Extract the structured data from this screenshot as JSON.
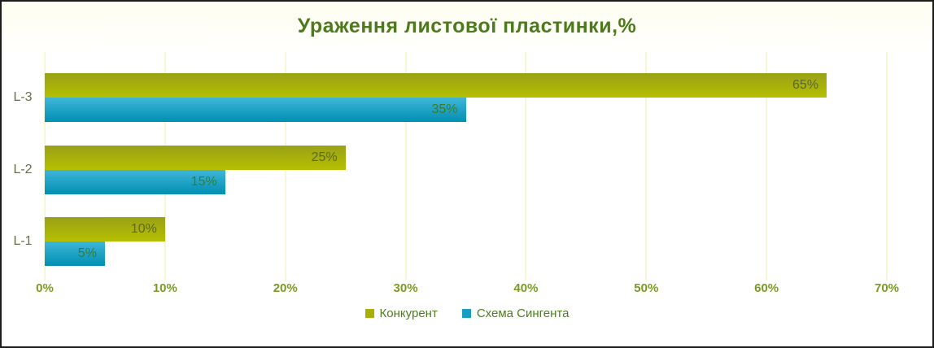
{
  "chart_data": {
    "type": "bar",
    "orientation": "horizontal",
    "title": "Ураження листової пластинки,%",
    "categories": [
      "L-3",
      "L-2",
      "L-1"
    ],
    "series": [
      {
        "name": "Конкурент",
        "values": [
          65,
          25,
          10
        ],
        "color": "#a7b105",
        "gradient_top": "#99a116",
        "gradient_bottom": "#b5bf01",
        "label_color": "#5e662e"
      },
      {
        "name": "Схема Сингента",
        "values": [
          35,
          15,
          5
        ],
        "color": "#1a9dc2",
        "gradient_top": "#3fb6d9",
        "gradient_bottom": "#008fb2",
        "label_color": "#3e7a22"
      }
    ],
    "data_label_format": "{v}%",
    "xlim": [
      0,
      70
    ],
    "x_ticks": [
      "0%",
      "10%",
      "20%",
      "30%",
      "40%",
      "50%",
      "60%",
      "70%"
    ],
    "grid": "vertical",
    "legend_position": "bottom"
  },
  "colors": {
    "title_text": "#4c7a1d",
    "tick_text": "#7a9c22",
    "category_text": "#6c6c4e",
    "legend_text": "#4e7d20",
    "gridline": "#f7f7d6",
    "frame_border": "#1c1c1c"
  }
}
